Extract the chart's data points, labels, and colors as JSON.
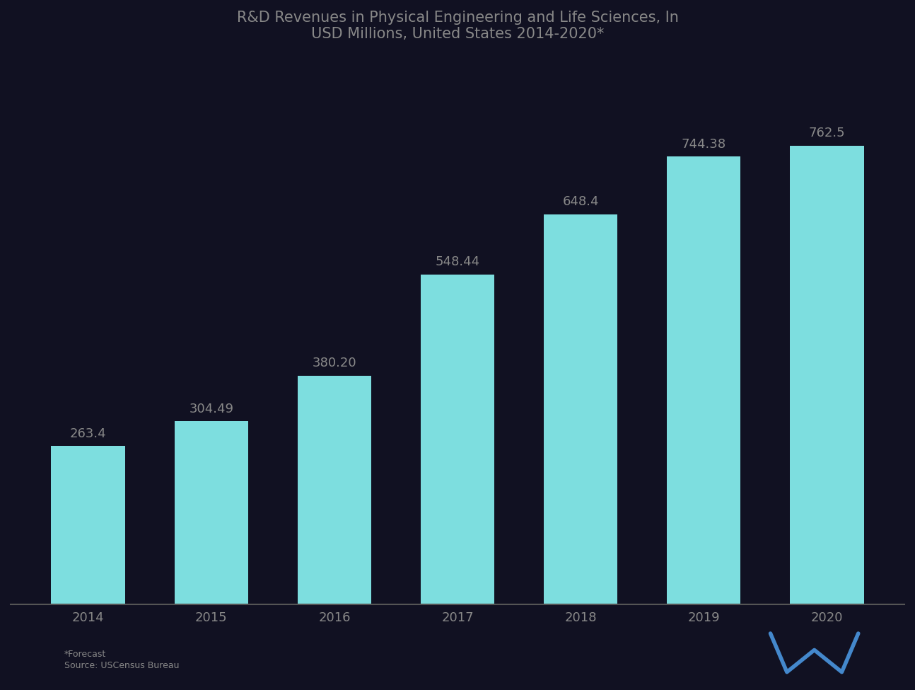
{
  "title_line1": "R&D Revenues in Physical Engineering and Life Sciences, In",
  "title_line2": "USD Millions, United States 2014-2020*",
  "categories": [
    "2014",
    "2015",
    "2016",
    "2017",
    "2018",
    "2019",
    "2020"
  ],
  "values": [
    263.4,
    304.49,
    380.2,
    548.44,
    648.4,
    744.38,
    762.5
  ],
  "bar_color": "#7DDEDF",
  "bar_edge_color": "none",
  "label_color": "#888888",
  "title_color": "#888888",
  "axis_color": "#555555",
  "background_color": "#1a1a2e",
  "plot_bg_color": "#1a1a2e",
  "value_labels": [
    "263.4",
    "304.49",
    "380.20",
    "548.44",
    "648.4",
    "744.38",
    "762.5"
  ],
  "footnote": "*Forecast",
  "source": "Source: USCensus Bureau",
  "ylim": [
    0,
    900
  ],
  "title_fontsize": 15,
  "label_fontsize": 13,
  "tick_fontsize": 13
}
